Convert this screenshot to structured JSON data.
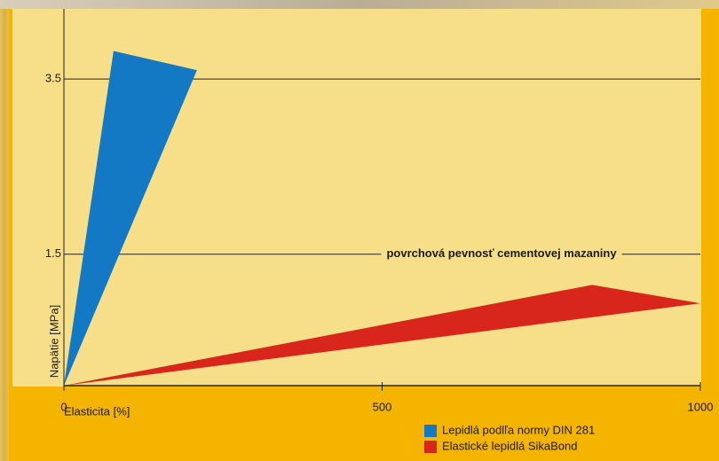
{
  "chart_data": {
    "type": "area",
    "annotation": {
      "text": "povrchová pevnosť cementovej mazaniny",
      "y": 1.5
    },
    "xlabel": "Elasticita [%]",
    "ylabel": "Napätie [MPa]",
    "xlim": [
      0,
      1000
    ],
    "xticks": [
      0,
      500,
      1000
    ],
    "ylim": [
      0,
      4.3
    ],
    "yticks": [
      1.5,
      3.5
    ],
    "grid": true,
    "series": [
      {
        "name": "Lepidlá podlľa normy DIN 281",
        "color": "#1479c4",
        "x": [
          0,
          78,
          209
        ],
        "values": [
          0,
          3.82,
          3.6
        ]
      },
      {
        "name": "Elastické lepidlá SikaBond",
        "color": "#d9261c",
        "x": [
          0,
          830,
          1000
        ],
        "values": [
          0,
          1.15,
          0.94
        ]
      }
    ]
  }
}
